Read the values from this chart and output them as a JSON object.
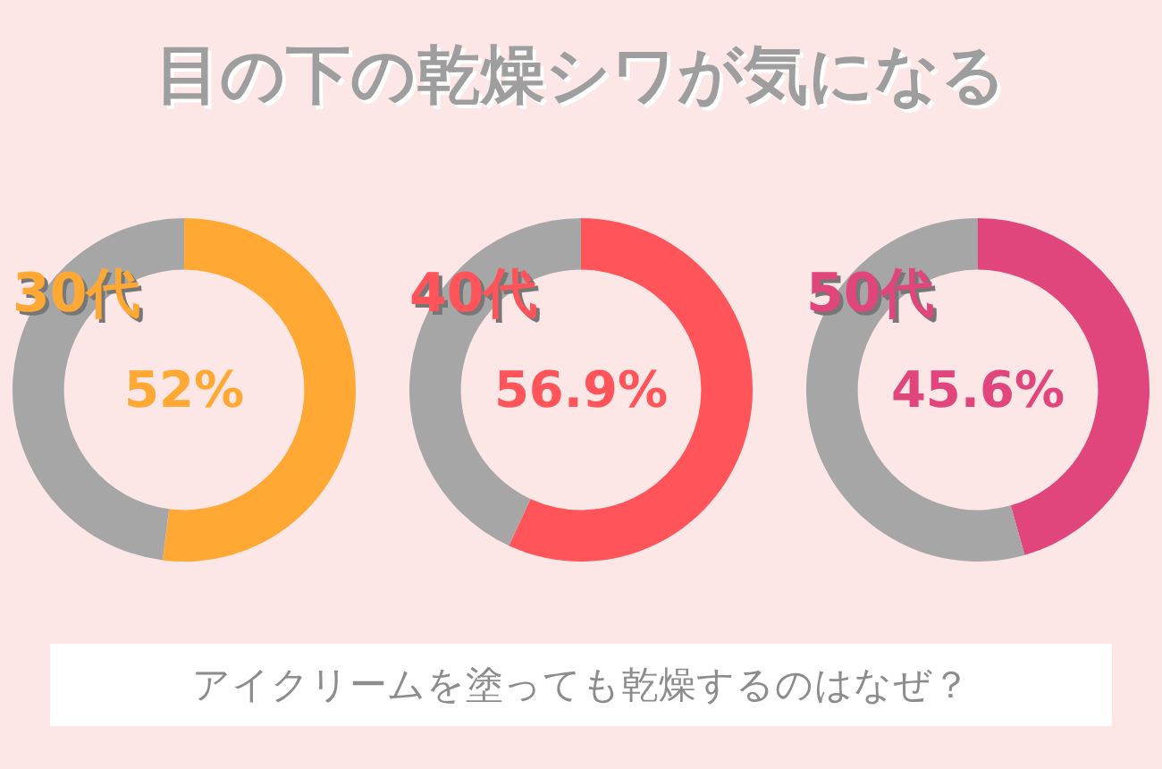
{
  "chart_data": [
    {
      "type": "other",
      "title": "目の下の乾燥シワが気になる"
    },
    {
      "type": "donut",
      "title": "30代",
      "categories": [
        null,
        null
      ],
      "values": [
        52,
        48
      ],
      "colors": [
        "#ffa834",
        "#a6a6a6"
      ],
      "value_labels": [
        "52%",
        null
      ]
    },
    {
      "type": "donut",
      "title": "40代",
      "categories": [
        null,
        null
      ],
      "values": [
        56.9,
        43.1
      ],
      "colors": [
        "#ff5459",
        "#a6a6a6"
      ],
      "value_labels": [
        "56.9%",
        null
      ]
    },
    {
      "type": "donut",
      "title": "50代",
      "categories": [
        null,
        null
      ],
      "values": [
        45.6,
        54.4
      ],
      "colors": [
        "#e0457b",
        "#a6a6a6"
      ],
      "value_labels": [
        "45.6%",
        null
      ]
    },
    {
      "type": "other",
      "annotations": [
        "アイクリームを塗っても乾燥するのはなぜ？"
      ]
    }
  ]
}
